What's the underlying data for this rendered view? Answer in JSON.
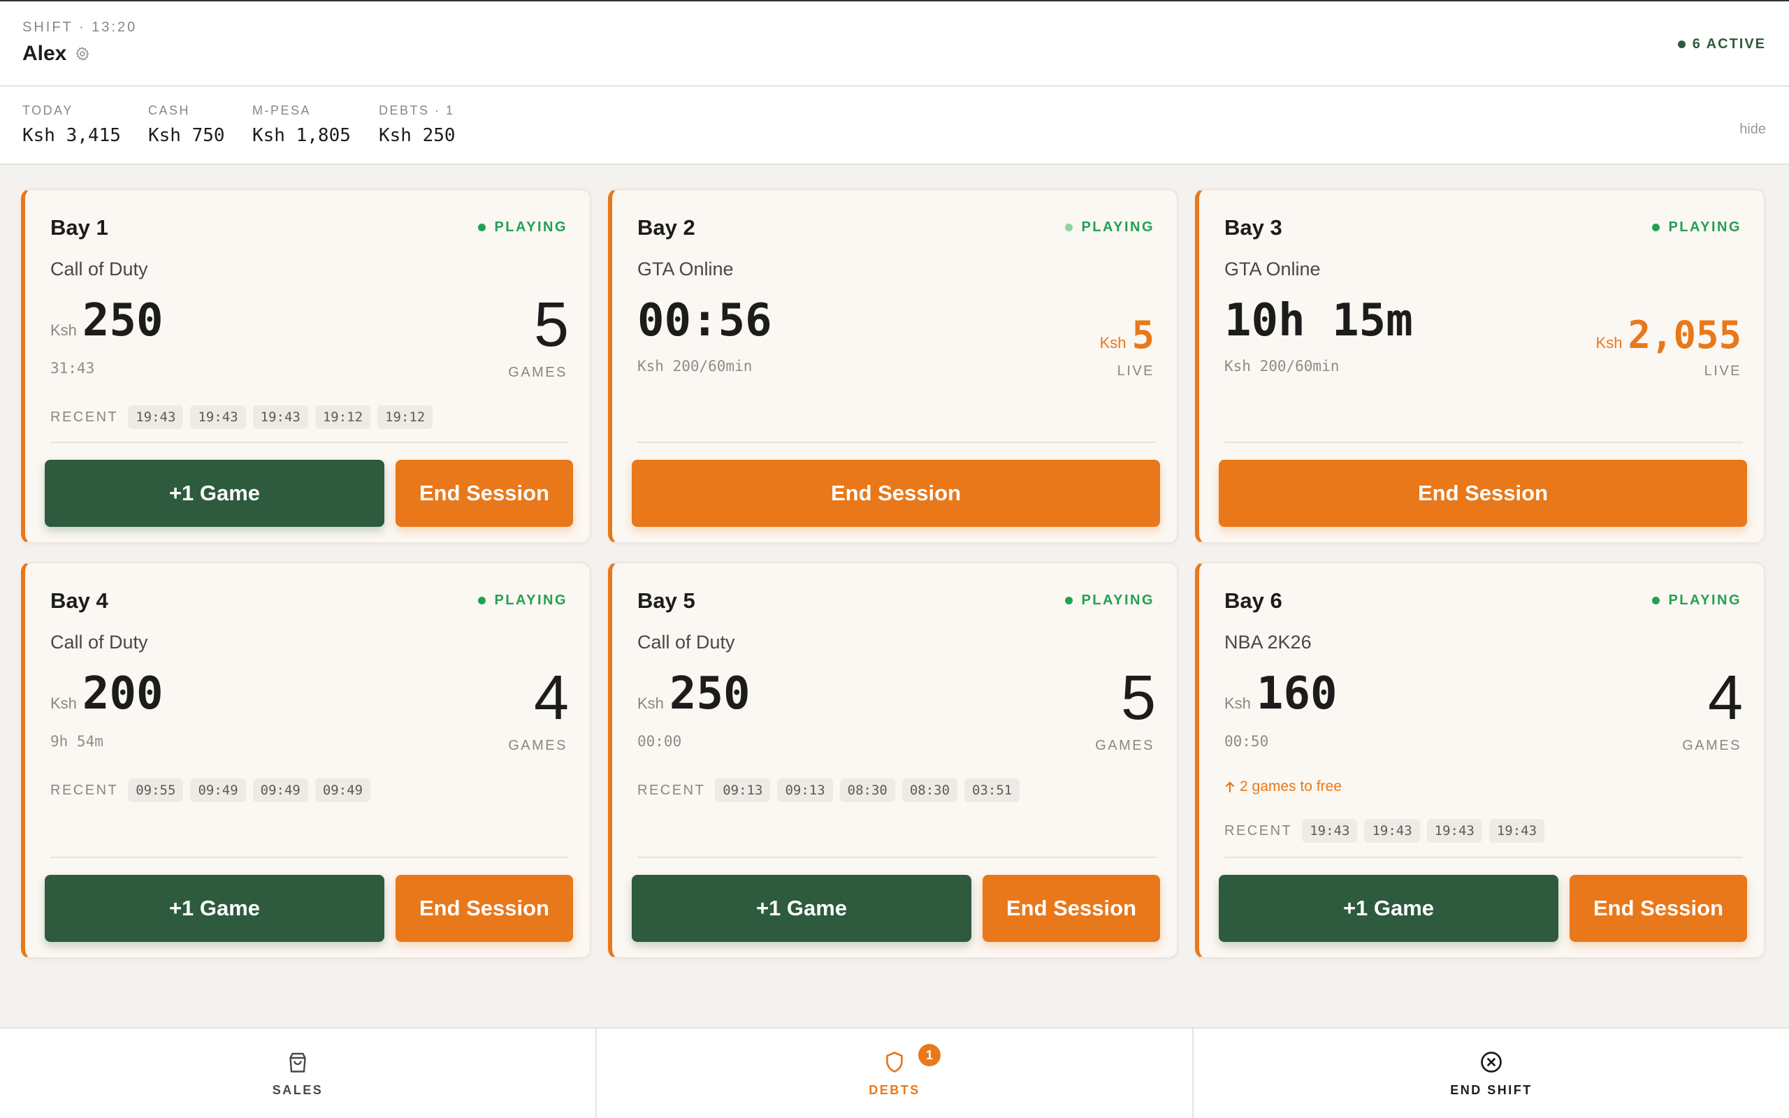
{
  "header": {
    "shift_label": "SHIFT · 13:20",
    "user_name": "Alex",
    "active_label": "6 ACTIVE"
  },
  "stats": {
    "items": [
      {
        "label": "TODAY",
        "value": "Ksh 3,415"
      },
      {
        "label": "CASH",
        "value": "Ksh 750"
      },
      {
        "label": "M-PESA",
        "value": "Ksh 1,805"
      },
      {
        "label": "DEBTS · 1",
        "value": "Ksh 250"
      }
    ],
    "hide_label": "hide"
  },
  "colors": {
    "accent_orange": "#e8781a",
    "game_green": "#2e5a3e",
    "playing_green": "#22a152"
  },
  "bays": [
    {
      "title": "Bay 1",
      "status": "PLAYING",
      "game": "Call of Duty",
      "currency": "Ksh",
      "price": "250",
      "time": "31:43",
      "games_count": "5",
      "games_label": "GAMES",
      "recent_label": "RECENT",
      "recent": [
        "19:43",
        "19:43",
        "19:43",
        "19:12",
        "19:12"
      ],
      "add_game_label": "+1 Game",
      "end_label": "End Session"
    },
    {
      "title": "Bay 2",
      "status": "PLAYING",
      "game": "GTA Online",
      "timer": "00:56",
      "rate": "Ksh 200/60min",
      "live_currency": "Ksh",
      "live_amount": "5",
      "live_label": "LIVE",
      "end_label": "End Session"
    },
    {
      "title": "Bay 3",
      "status": "PLAYING",
      "game": "GTA Online",
      "timer": "10h 15m",
      "rate": "Ksh 200/60min",
      "live_currency": "Ksh",
      "live_amount": "2,055",
      "live_label": "LIVE",
      "end_label": "End Session"
    },
    {
      "title": "Bay 4",
      "status": "PLAYING",
      "game": "Call of Duty",
      "currency": "Ksh",
      "price": "200",
      "time": "9h 54m",
      "games_count": "4",
      "games_label": "GAMES",
      "recent_label": "RECENT",
      "recent": [
        "09:55",
        "09:49",
        "09:49",
        "09:49"
      ],
      "add_game_label": "+1 Game",
      "end_label": "End Session"
    },
    {
      "title": "Bay 5",
      "status": "PLAYING",
      "game": "Call of Duty",
      "currency": "Ksh",
      "price": "250",
      "time": "00:00",
      "games_count": "5",
      "games_label": "GAMES",
      "recent_label": "RECENT",
      "recent": [
        "09:13",
        "09:13",
        "08:30",
        "08:30",
        "03:51"
      ],
      "add_game_label": "+1 Game",
      "end_label": "End Session"
    },
    {
      "title": "Bay 6",
      "status": "PLAYING",
      "game": "NBA 2K26",
      "currency": "Ksh",
      "price": "160",
      "time": "00:50",
      "games_count": "4",
      "games_label": "GAMES",
      "free_note": "2 games to free",
      "recent_label": "RECENT",
      "recent": [
        "19:43",
        "19:43",
        "19:43",
        "19:43"
      ],
      "add_game_label": "+1 Game",
      "end_label": "End Session"
    }
  ],
  "nav": {
    "items": [
      {
        "label": "SALES",
        "icon": "shopping-bag-icon"
      },
      {
        "label": "DEBTS",
        "icon": "shield-icon",
        "badge": "1"
      },
      {
        "label": "END SHIFT",
        "icon": "close-circle-icon"
      }
    ]
  }
}
